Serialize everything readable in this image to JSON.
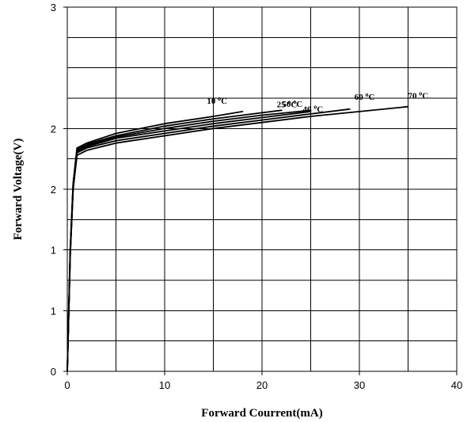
{
  "chart_data": {
    "type": "line",
    "xlabel": "Forward Courrent(mA)",
    "ylabel": "Forward Voltage(V)",
    "xlim": [
      0,
      40
    ],
    "ylim": [
      0,
      3
    ],
    "x_ticks": [
      0,
      10,
      20,
      30,
      40
    ],
    "x_tick_labels": [
      "0",
      "10",
      "20",
      "30",
      "40"
    ],
    "y_ticks": [
      0,
      0.5,
      1,
      1.5,
      2,
      2.5,
      3
    ],
    "y_tick_labels": [
      "0",
      "1",
      "1",
      "2",
      "2",
      "3"
    ],
    "y_label_positions": [
      0,
      0.5,
      1,
      1.5,
      2,
      3
    ],
    "grid": true,
    "series": [
      {
        "name": "10 °C",
        "label": {
          "main": "10 ",
          "sup": "o",
          "suffix": "C"
        },
        "x": [
          0,
          0.3,
          0.6,
          1,
          2,
          5,
          10,
          15,
          18
        ],
        "y": [
          0,
          1.0,
          1.55,
          1.84,
          1.88,
          1.96,
          2.04,
          2.1,
          2.14
        ]
      },
      {
        "name": "25 °C",
        "label": {
          "main": "25 ",
          "sup": "o",
          "suffix": "C"
        },
        "x": [
          0,
          0.3,
          0.6,
          1,
          2,
          5,
          10,
          15,
          20,
          22
        ],
        "y": [
          0,
          1.0,
          1.54,
          1.83,
          1.87,
          1.94,
          2.02,
          2.08,
          2.13,
          2.15
        ]
      },
      {
        "name": "40 °C",
        "label": {
          "main": "40 ",
          "sup": "o",
          "suffix": "C"
        },
        "x": [
          0,
          0.3,
          0.6,
          1,
          2,
          5,
          10,
          15,
          20,
          25
        ],
        "y": [
          0,
          0.98,
          1.53,
          1.82,
          1.86,
          1.93,
          2.0,
          2.06,
          2.11,
          2.15
        ]
      },
      {
        "name": "50 °C",
        "label": {
          "main": "50 ",
          "sup": "o",
          "suffix": "C"
        },
        "x": [
          0,
          0.3,
          0.6,
          1,
          2,
          5,
          10,
          15,
          20,
          25
        ],
        "y": [
          0,
          0.97,
          1.52,
          1.81,
          1.85,
          1.92,
          1.98,
          2.04,
          2.09,
          2.14
        ]
      },
      {
        "name": "60 °C",
        "label": {
          "main": "60 ",
          "sup": "o",
          "suffix": "C"
        },
        "x": [
          0,
          0.3,
          0.6,
          1,
          2,
          5,
          10,
          15,
          20,
          25,
          29
        ],
        "y": [
          0,
          0.96,
          1.51,
          1.8,
          1.84,
          1.9,
          1.96,
          2.02,
          2.07,
          2.12,
          2.16
        ]
      },
      {
        "name": "70 °C",
        "label": {
          "main": "70 ",
          "sup": "o",
          "suffix": "C"
        },
        "x": [
          0,
          0.3,
          0.6,
          1,
          2,
          5,
          10,
          15,
          20,
          25,
          30,
          35
        ],
        "y": [
          0,
          0.95,
          1.5,
          1.78,
          1.82,
          1.88,
          1.94,
          2.0,
          2.05,
          2.1,
          2.14,
          2.18
        ]
      }
    ]
  }
}
